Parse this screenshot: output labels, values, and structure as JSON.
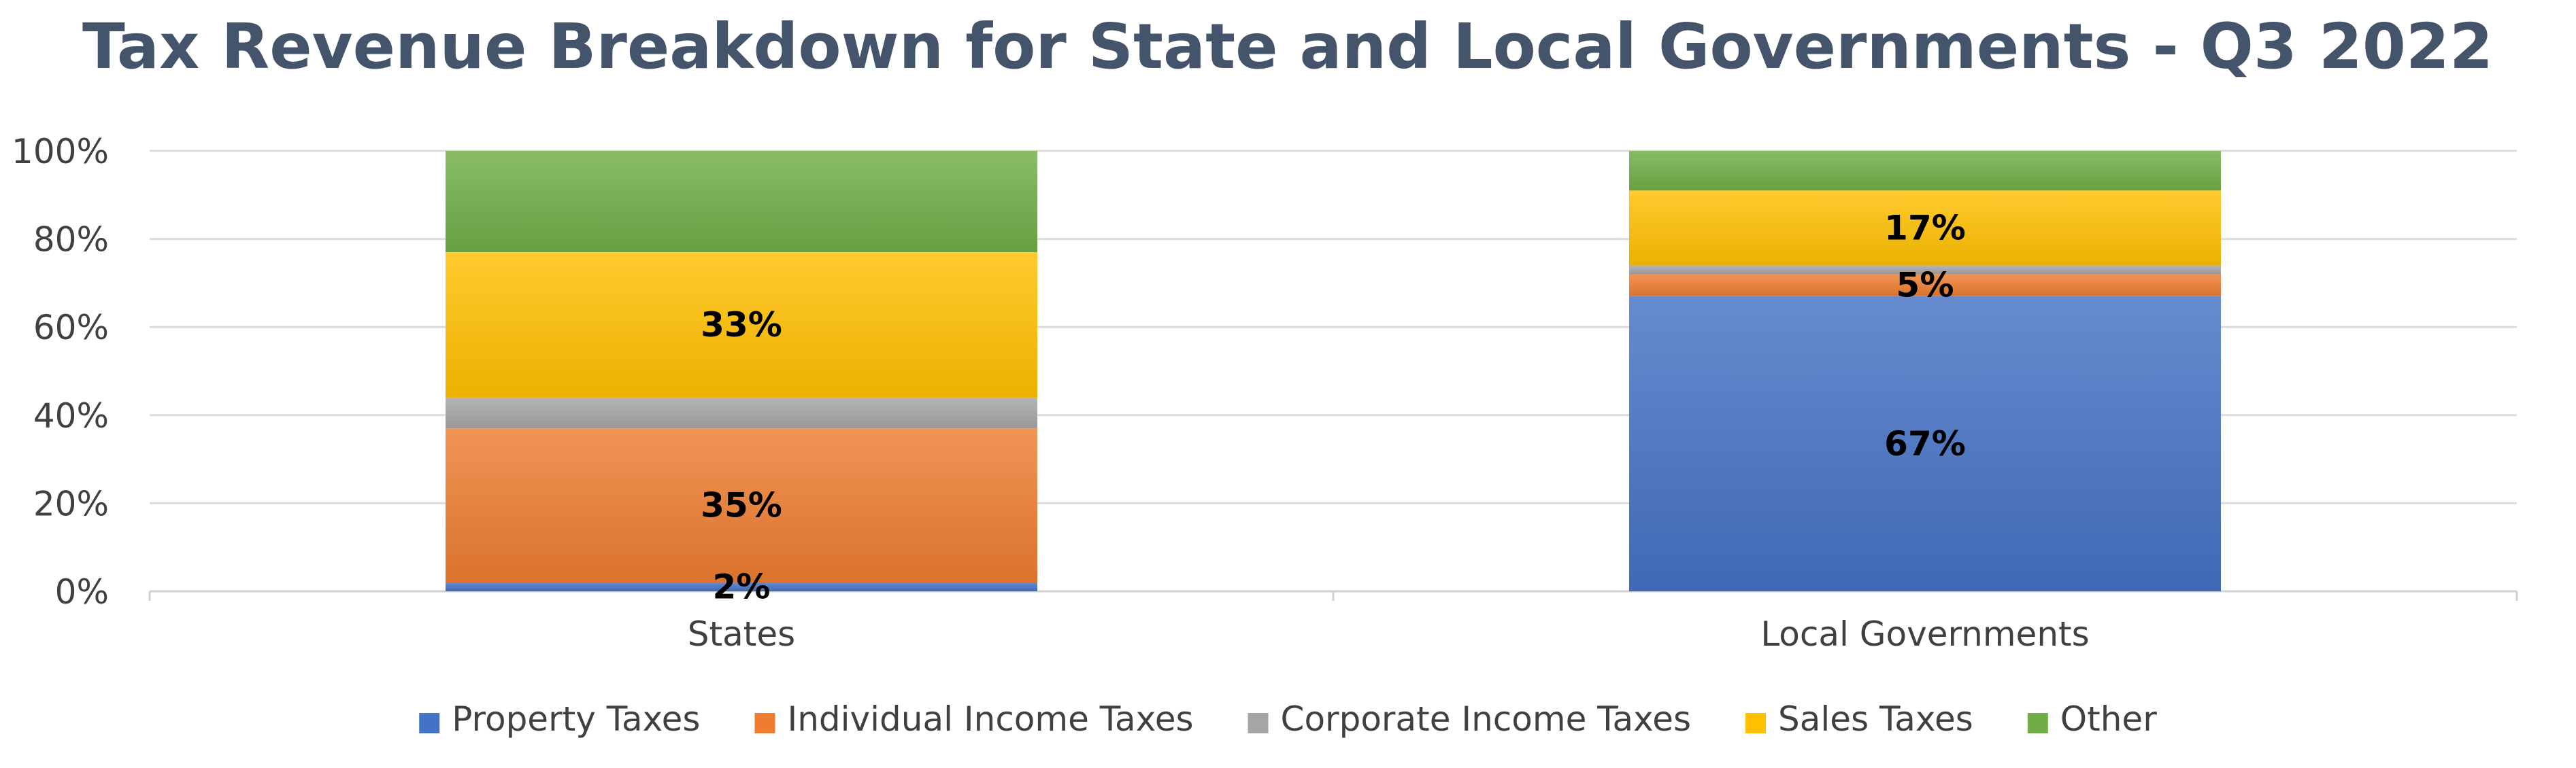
{
  "chart_data": {
    "type": "bar",
    "stacked": true,
    "percent_stacked": true,
    "title": "Tax Revenue Breakdown for State and Local Governments - Q3 2022",
    "categories": [
      "States",
      "Local Governments"
    ],
    "y_ticks": [
      "0%",
      "20%",
      "40%",
      "60%",
      "80%",
      "100%"
    ],
    "ylim": [
      0,
      100
    ],
    "grid": true,
    "legend_position": "bottom",
    "series": [
      {
        "name": "Property Taxes",
        "color": "#4472c4",
        "values": [
          2,
          67
        ],
        "labels": [
          "2%",
          "67%"
        ]
      },
      {
        "name": "Individual Income Taxes",
        "color": "#ed7d31",
        "values": [
          35,
          5
        ],
        "labels": [
          "35%",
          "5%"
        ]
      },
      {
        "name": "Corporate Income Taxes",
        "color": "#a5a5a5",
        "values": [
          7,
          2
        ],
        "labels": [
          "",
          ""
        ]
      },
      {
        "name": "Sales Taxes",
        "color": "#ffc000",
        "values": [
          33,
          17
        ],
        "labels": [
          "33%",
          "17%"
        ]
      },
      {
        "name": "Other",
        "color": "#70ad47",
        "values": [
          23,
          9
        ],
        "labels": [
          "",
          ""
        ]
      }
    ]
  }
}
